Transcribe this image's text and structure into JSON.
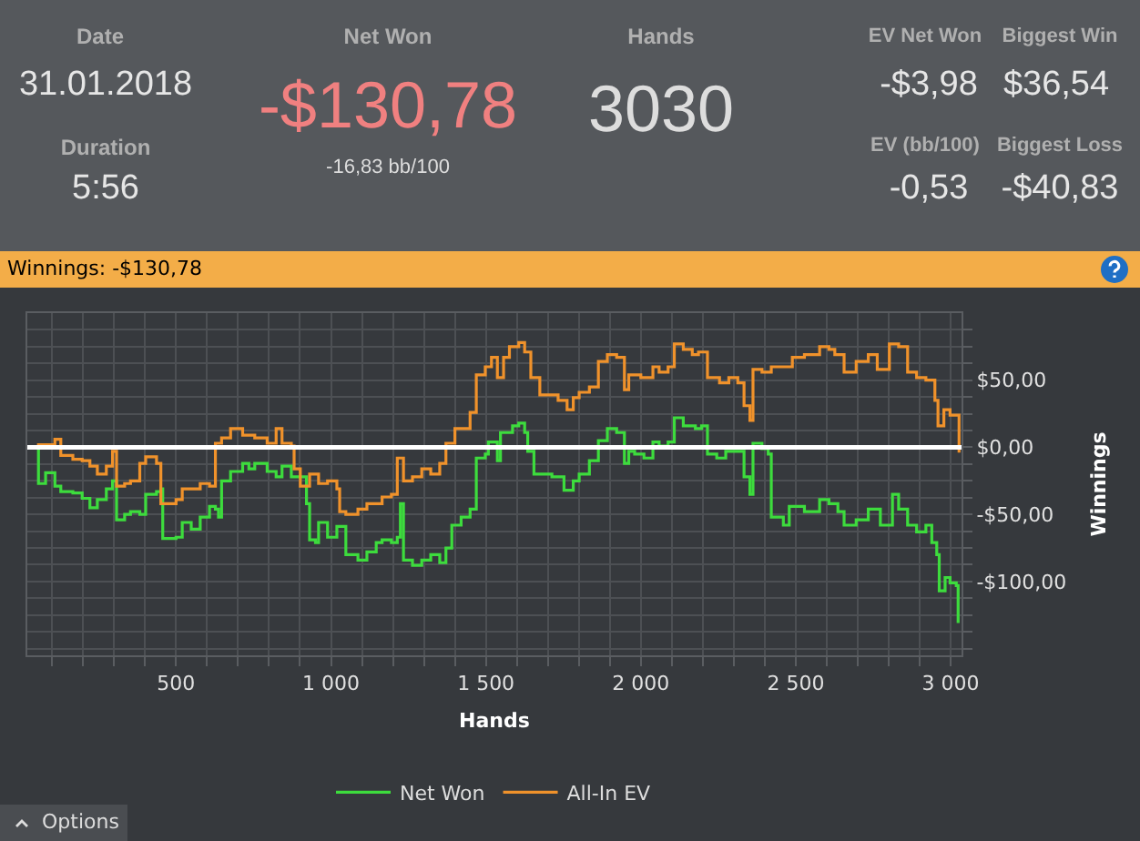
{
  "chart_data": [
    {
      "type": "other",
      "annotations": [
        "Date",
        "31.01.2018",
        "Duration",
        "5:56",
        "Net Won",
        "-$130,78",
        "-16,83 bb/100",
        "Hands",
        "3030",
        "EV Net Won",
        "-$3,98",
        "EV (bb/100)",
        "-0,53",
        "Biggest Win",
        "$36,54",
        "Biggest Loss",
        "-$40,83"
      ]
    },
    {
      "type": "step",
      "title": "Winnings: -$130,78",
      "xlabel": "Hands",
      "ylabel": "Winnings",
      "xlim": [
        20,
        3035
      ],
      "ylim": [
        -155,
        100
      ],
      "xticks": [
        {
          "value": 100,
          "label": null
        },
        {
          "value": 200,
          "label": null
        },
        {
          "value": 300,
          "label": null
        },
        {
          "value": 400,
          "label": null
        },
        {
          "value": 500,
          "label": "500"
        },
        {
          "value": 600,
          "label": null
        },
        {
          "value": 700,
          "label": null
        },
        {
          "value": 800,
          "label": null
        },
        {
          "value": 900,
          "label": null
        },
        {
          "value": 1000,
          "label": "1 000"
        },
        {
          "value": 1100,
          "label": null
        },
        {
          "value": 1200,
          "label": null
        },
        {
          "value": 1300,
          "label": null
        },
        {
          "value": 1400,
          "label": null
        },
        {
          "value": 1500,
          "label": "1 500"
        },
        {
          "value": 1600,
          "label": null
        },
        {
          "value": 1700,
          "label": null
        },
        {
          "value": 1800,
          "label": null
        },
        {
          "value": 1900,
          "label": null
        },
        {
          "value": 2000,
          "label": "2 000"
        },
        {
          "value": 2100,
          "label": null
        },
        {
          "value": 2200,
          "label": null
        },
        {
          "value": 2300,
          "label": null
        },
        {
          "value": 2400,
          "label": null
        },
        {
          "value": 2500,
          "label": "2 500"
        },
        {
          "value": 2600,
          "label": null
        },
        {
          "value": 2700,
          "label": null
        },
        {
          "value": 2800,
          "label": null
        },
        {
          "value": 2900,
          "label": null
        },
        {
          "value": 3000,
          "label": "3 000"
        }
      ],
      "yticks": [
        {
          "value": -150,
          "label": null
        },
        {
          "value": -137.5,
          "label": null
        },
        {
          "value": -125,
          "label": null
        },
        {
          "value": -112.5,
          "label": null
        },
        {
          "value": -100,
          "label": "-$100,00"
        },
        {
          "value": -87.5,
          "label": null
        },
        {
          "value": -75,
          "label": null
        },
        {
          "value": -62.5,
          "label": null
        },
        {
          "value": -50,
          "label": "-$50,00"
        },
        {
          "value": -37.5,
          "label": null
        },
        {
          "value": -25,
          "label": null
        },
        {
          "value": -12.5,
          "label": null
        },
        {
          "value": 0,
          "label": "$0,00"
        },
        {
          "value": 12.5,
          "label": null
        },
        {
          "value": 25,
          "label": null
        },
        {
          "value": 37.5,
          "label": null
        },
        {
          "value": 50,
          "label": "$50,00"
        },
        {
          "value": 62.5,
          "label": null
        },
        {
          "value": 75,
          "label": null
        },
        {
          "value": 87.5,
          "label": null
        }
      ],
      "grid": true,
      "legend": "bottom",
      "marker": "none",
      "line_style": "solid",
      "ref_lines": [
        {
          "axis": "y",
          "value": 0,
          "label": null,
          "color": "#ffffff"
        }
      ],
      "annotations": [
        "Options"
      ],
      "series": [
        {
          "name": "Net Won",
          "color": "#3ddc3d",
          "x": [
            22,
            56,
            79,
            109,
            128,
            167,
            197,
            222,
            246,
            275,
            295,
            308,
            334,
            353,
            383,
            402,
            437,
            451,
            457,
            500,
            520,
            549,
            578,
            608,
            627,
            637,
            647,
            676,
            715,
            735,
            754,
            794,
            823,
            842,
            872,
            901,
            921,
            931,
            950,
            960,
            989,
            1019,
            1048,
            1087,
            1116,
            1146,
            1165,
            1195,
            1214,
            1224,
            1234,
            1263,
            1293,
            1322,
            1351,
            1371,
            1390,
            1420,
            1449,
            1469,
            1498,
            1508,
            1537,
            1547,
            1586,
            1606,
            1625,
            1635,
            1655,
            1694,
            1713,
            1752,
            1782,
            1801,
            1834,
            1863,
            1892,
            1922,
            1941,
            1947,
            1961,
            1980,
            2010,
            2039,
            2059,
            2088,
            2108,
            2137,
            2176,
            2196,
            2215,
            2245,
            2274,
            2313,
            2333,
            2352,
            2362,
            2391,
            2411,
            2421,
            2460,
            2479,
            2528,
            2577,
            2607,
            2636,
            2656,
            2695,
            2734,
            2773,
            2812,
            2832,
            2861,
            2890,
            2920,
            2939,
            2955,
            2963,
            2982,
            2998,
            3018,
            3024
          ],
          "values": [
            0,
            -27,
            -19,
            -29,
            -33,
            -34,
            -38,
            -45,
            -39,
            -31,
            -25,
            -54,
            -50,
            -48,
            -50,
            -35,
            -33,
            -31,
            -68,
            -67,
            -56,
            -61,
            -52,
            -44,
            -46,
            -52,
            -25,
            -18,
            -12,
            -16,
            -12,
            -18,
            -22,
            -14,
            -22,
            -22,
            -42,
            -69,
            -71,
            -56,
            -67,
            -59,
            -80,
            -84,
            -78,
            -71,
            -69,
            -71,
            -67,
            -42,
            -84,
            -88,
            -84,
            -80,
            -86,
            -75,
            -58,
            -52,
            -46,
            -8,
            -5,
            4,
            -10,
            11,
            16,
            18,
            11,
            -3,
            -20,
            -20,
            -22,
            -32,
            -25,
            -20,
            -10,
            5,
            14,
            11,
            11,
            -12,
            -3,
            -5,
            -8,
            4,
            1,
            4,
            22,
            16,
            14,
            16,
            -5,
            -8,
            -3,
            -3,
            -22,
            -35,
            3,
            -1,
            -5,
            -52,
            -58,
            -44,
            -48,
            -39,
            -42,
            -48,
            -58,
            -54,
            -46,
            -58,
            -35,
            -46,
            -58,
            -63,
            -58,
            -71,
            -80,
            -107,
            -97,
            -101,
            -103,
            -131
          ]
        },
        {
          "name": "All-In EV",
          "color": "#f0922b",
          "x": [
            22,
            56,
            79,
            109,
            128,
            167,
            197,
            222,
            246,
            275,
            295,
            308,
            334,
            353,
            383,
            402,
            437,
            451,
            500,
            520,
            549,
            578,
            608,
            627,
            647,
            676,
            715,
            754,
            794,
            823,
            842,
            872,
            881,
            901,
            931,
            960,
            989,
            1019,
            1028,
            1048,
            1087,
            1116,
            1165,
            1195,
            1214,
            1234,
            1263,
            1293,
            1322,
            1351,
            1371,
            1400,
            1449,
            1469,
            1498,
            1518,
            1537,
            1557,
            1576,
            1606,
            1625,
            1645,
            1674,
            1704,
            1733,
            1762,
            1782,
            1801,
            1834,
            1863,
            1892,
            1922,
            1941,
            1947,
            1961,
            2000,
            2039,
            2059,
            2088,
            2108,
            2137,
            2166,
            2186,
            2215,
            2254,
            2284,
            2313,
            2333,
            2352,
            2362,
            2391,
            2421,
            2450,
            2489,
            2528,
            2577,
            2607,
            2626,
            2656,
            2695,
            2734,
            2763,
            2802,
            2832,
            2861,
            2890,
            2920,
            2949,
            2959,
            2978,
            2998,
            3024,
            3027
          ],
          "values": [
            0,
            2,
            2,
            6,
            -6,
            -9,
            -10,
            -14,
            -20,
            -14,
            -3,
            -29,
            -27,
            -25,
            -12,
            -7,
            -12,
            -42,
            -39,
            -31,
            -31,
            -27,
            -29,
            3,
            7,
            14,
            9,
            7,
            3,
            14,
            3,
            1,
            -16,
            -29,
            -20,
            -27,
            -25,
            -31,
            -48,
            -50,
            -46,
            -42,
            -37,
            -35,
            -8,
            -25,
            -22,
            -16,
            -20,
            -12,
            3,
            14,
            26,
            54,
            60,
            67,
            52,
            67,
            75,
            78,
            71,
            52,
            39,
            39,
            35,
            28,
            37,
            41,
            45,
            64,
            69,
            67,
            67,
            43,
            54,
            52,
            60,
            56,
            60,
            77,
            73,
            69,
            71,
            52,
            48,
            52,
            48,
            31,
            20,
            58,
            56,
            60,
            60,
            67,
            69,
            75,
            73,
            69,
            56,
            64,
            69,
            58,
            77,
            75,
            56,
            52,
            50,
            35,
            16,
            28,
            24,
            24,
            -4
          ]
        }
      ]
    }
  ]
}
